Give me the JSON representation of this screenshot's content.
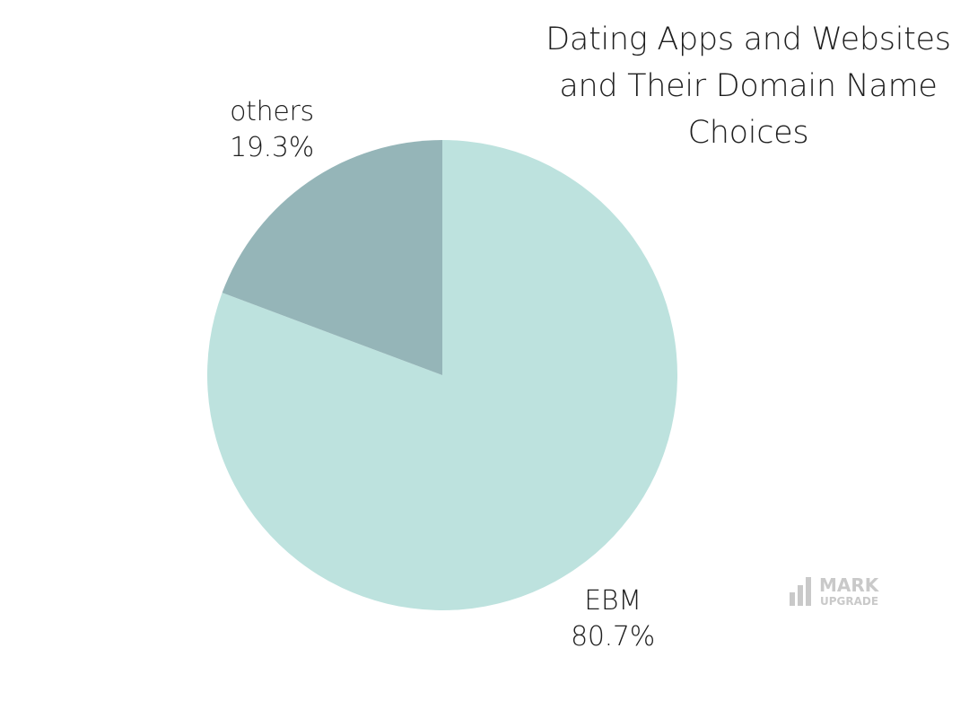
{
  "chart_data": {
    "type": "pie",
    "title_lines": [
      "Dating Apps and Websites",
      "and Their Domain Name",
      "Choices"
    ],
    "slices": [
      {
        "label": "EBM",
        "value": 80.7,
        "display": "80.7%",
        "color": "#bde2de"
      },
      {
        "label": "others",
        "value": 19.3,
        "display": "19.3%",
        "color": "#95b5b8"
      }
    ]
  },
  "watermark": {
    "text_top": "MARK",
    "text_bottom": "UPGRADE"
  }
}
